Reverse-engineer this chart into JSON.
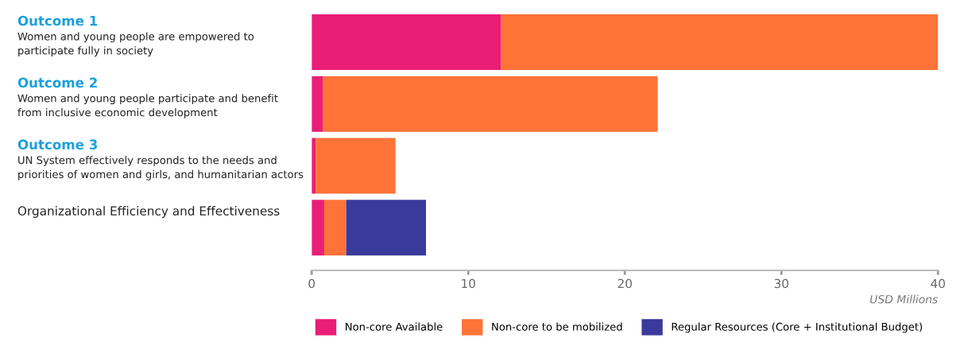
{
  "chart_data": {
    "type": "bar",
    "orientation": "horizontal",
    "stacked": true,
    "categories": [
      "Outcome 1\nWomen and young people are empowered to\nparticipate fully in society",
      "Outcome 2\nWomen and young people participate and benefit\nfrom inclusive economic development",
      "Outcome 3\nUN System effectively responds to the needs and\npriorities of women and girls, and humanitarian actors",
      "Organizational Efficiency and Effectiveness"
    ],
    "series": [
      {
        "name": "Non-core Available",
        "color": "#e91e76",
        "values": [
          12.1,
          0.7,
          0.25,
          0.8
        ]
      },
      {
        "name": "Non-core to be mobilized",
        "color": "#fd7338",
        "values": [
          27.9,
          21.4,
          5.1,
          1.4
        ]
      },
      {
        "name": "Regular Resources (Core + Institutional Budget)",
        "color": "#3a3a9c",
        "values": [
          null,
          null,
          null,
          5.1
        ]
      }
    ],
    "xlim": [
      0,
      40
    ],
    "xticks": [
      0,
      10,
      20,
      30,
      40
    ],
    "xlabel": "USD Millions",
    "grid": false,
    "legend": "bottom"
  }
}
